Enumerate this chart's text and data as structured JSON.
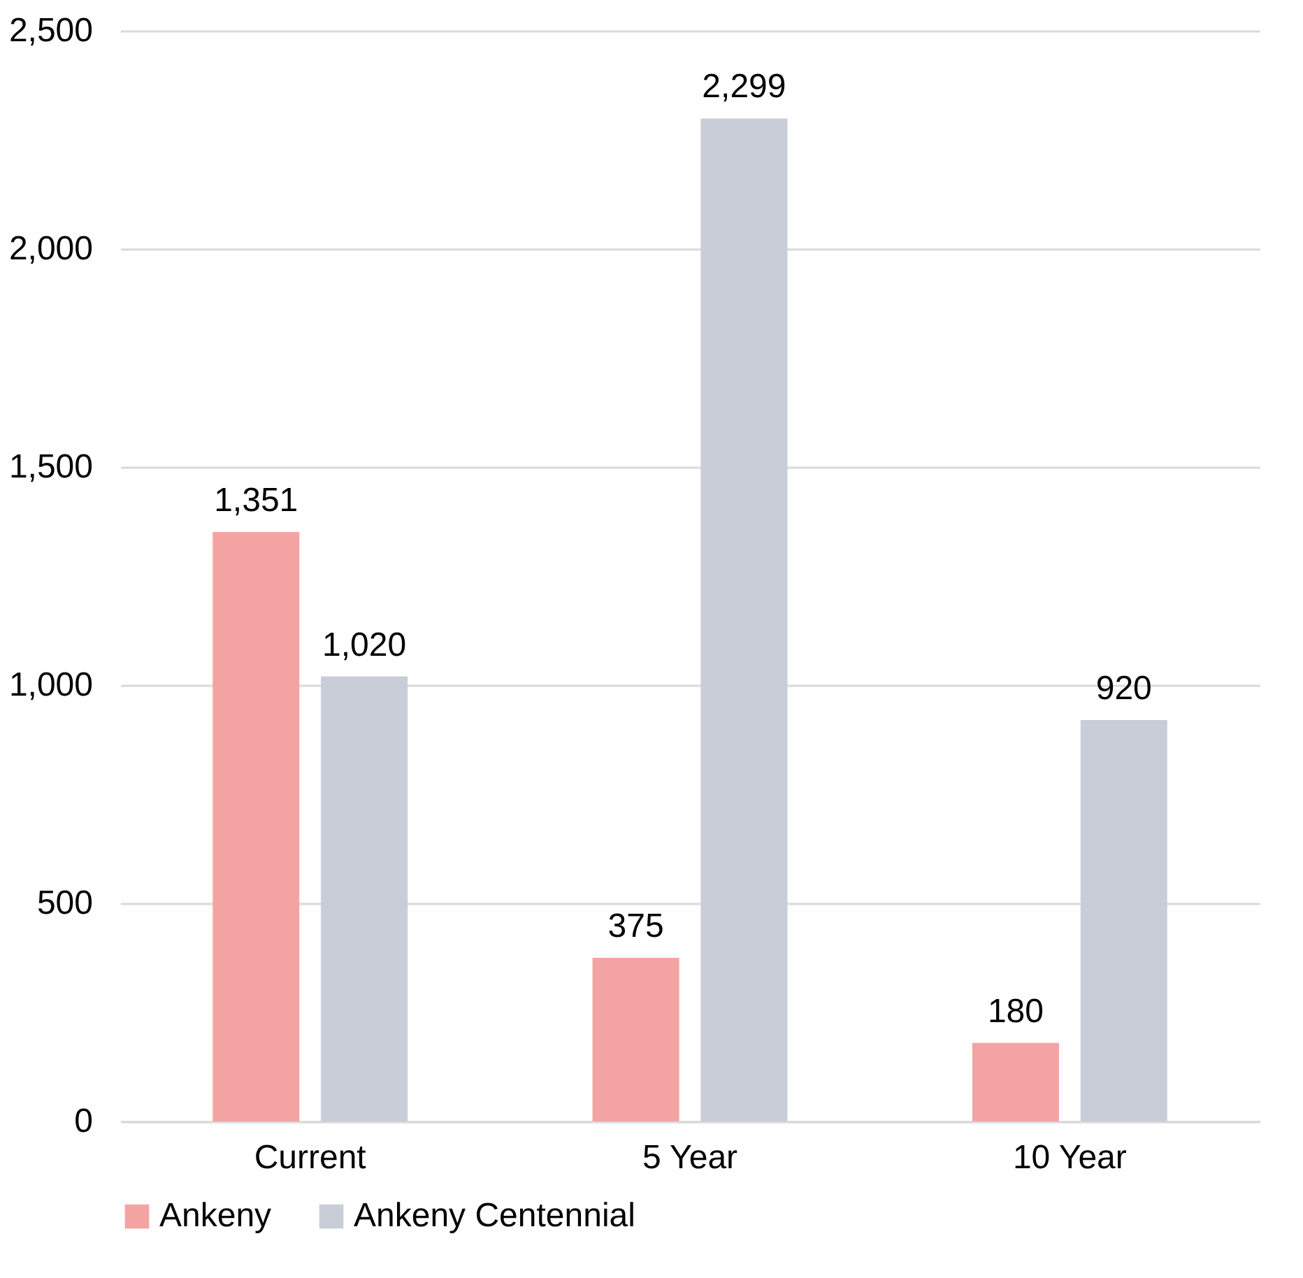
{
  "chart_data": {
    "type": "bar",
    "categories": [
      "Current",
      "5 Year",
      "10 Year"
    ],
    "series": [
      {
        "name": "Ankeny",
        "color": "#f4a3a3",
        "values": [
          1351,
          375,
          180
        ],
        "value_labels": [
          "1,351",
          "375",
          "180"
        ]
      },
      {
        "name": "Ankeny Centennial",
        "color": "#c8cdd8",
        "values": [
          1020,
          2299,
          920
        ],
        "value_labels": [
          "1,020",
          "2,299",
          "920"
        ]
      }
    ],
    "ylim": [
      0,
      2500
    ],
    "yticks": [
      0,
      500,
      {
        "value": 1000,
        "label": "1,000"
      },
      {
        "value": 1500,
        "label": "1,500"
      },
      {
        "value": 2000,
        "label": "2,000"
      },
      {
        "value": 2500,
        "label": "2,500"
      }
    ],
    "grid": "y",
    "legend": "bottom"
  }
}
